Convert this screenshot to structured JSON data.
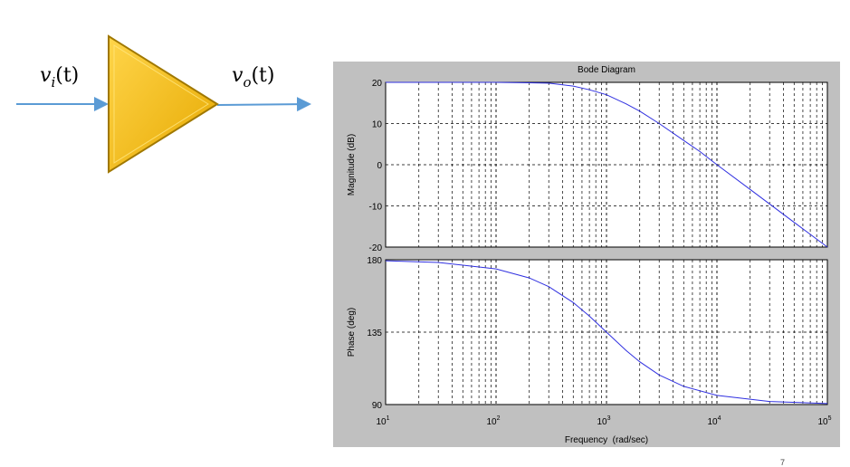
{
  "diagram": {
    "input_label": {
      "base": "v",
      "sub": "i",
      "arg": "(t)"
    },
    "output_label": {
      "base": "v",
      "sub": "o",
      "arg": "(t)"
    },
    "colors": {
      "amplifier_fill": "#FFC000",
      "amplifier_edge": "#A07800",
      "wire": "#5B9BD5"
    }
  },
  "chart_data": {
    "type": "line",
    "title": "Bode Diagram",
    "xlabel": "Frequency  (rad/sec)",
    "xscale": "log",
    "xlim": [
      10,
      100000
    ],
    "x_ticks": [
      {
        "base": "10",
        "exp": "1"
      },
      {
        "base": "10",
        "exp": "2"
      },
      {
        "base": "10",
        "exp": "3"
      },
      {
        "base": "10",
        "exp": "4"
      },
      {
        "base": "10",
        "exp": "5"
      }
    ],
    "grid": true,
    "line_color": "#3030e0",
    "panels": [
      {
        "name": "magnitude",
        "ylabel": "Magnitude (dB)",
        "ylim": [
          -20,
          20
        ],
        "y_ticks": [
          "20",
          "10",
          "0",
          "-10",
          "-20"
        ],
        "series": [
          {
            "x": [
              10,
              100,
              200,
              300,
              500,
              700,
              1000,
              1500,
              2000,
              3000,
              5000,
              7000,
              10000,
              20000,
              50000,
              100000
            ],
            "y": [
              20,
              20,
              19.9,
              19.8,
              19.1,
              18.2,
              17.0,
              14.8,
              13.0,
              10.0,
              5.9,
              3.2,
              0,
              -6.0,
              -14.0,
              -20
            ]
          }
        ]
      },
      {
        "name": "phase",
        "ylabel": "Phase (deg)",
        "ylim": [
          90,
          180
        ],
        "y_ticks": [
          "180",
          "135",
          "90"
        ],
        "series": [
          {
            "x": [
              10,
              30,
              100,
              200,
              300,
              500,
              700,
              1000,
              1500,
              2000,
              3000,
              5000,
              10000,
              30000,
              100000
            ],
            "y": [
              179.4,
              178.3,
              174.3,
              168.7,
              163.3,
              153.4,
              145.0,
              135.0,
              123.7,
              116.6,
              108.4,
              101.3,
              95.7,
              91.9,
              90.6
            ]
          }
        ]
      }
    ]
  },
  "footer": {
    "slide_number": "7"
  }
}
